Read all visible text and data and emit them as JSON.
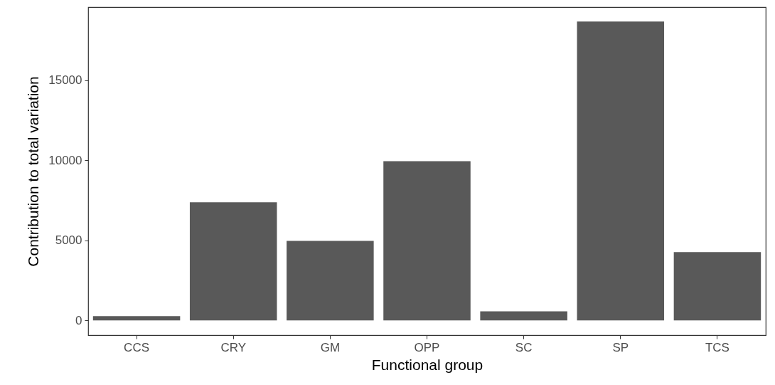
{
  "chart_data": {
    "type": "bar",
    "xlabel": "Functional group",
    "ylabel": "Contribution to total variation",
    "categories": [
      "CCS",
      "CRY",
      "GM",
      "OPP",
      "SC",
      "SP",
      "TCS"
    ],
    "values": [
      270,
      7380,
      4970,
      9950,
      570,
      18670,
      4270
    ],
    "color": "#595959",
    "ylim": [
      -920,
      19570
    ],
    "yticks": [
      0,
      5000,
      10000,
      15000
    ],
    "grid": false
  }
}
